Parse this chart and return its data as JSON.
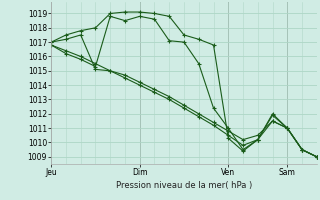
{
  "title": "Pression niveau de la mer( hPa )",
  "background_color": "#d0ece4",
  "grid_color": "#b0d8c8",
  "line_color": "#1a5c1a",
  "ylim": [
    1008.5,
    1019.8
  ],
  "yticks": [
    1009,
    1010,
    1011,
    1012,
    1013,
    1014,
    1015,
    1016,
    1017,
    1018,
    1019
  ],
  "day_labels": [
    "Jeu",
    "Dim",
    "Ven",
    "Sam"
  ],
  "day_positions": [
    0,
    48,
    96,
    128
  ],
  "xlim": [
    0,
    144
  ],
  "series1_x": [
    0,
    8,
    16,
    24,
    32,
    40,
    48,
    56,
    64,
    72,
    80,
    88,
    96,
    104,
    112,
    120,
    128,
    136,
    144
  ],
  "series1_y": [
    1017.0,
    1017.5,
    1017.8,
    1018.0,
    1019.0,
    1019.1,
    1019.1,
    1019.0,
    1018.8,
    1017.5,
    1017.2,
    1016.8,
    1010.3,
    1009.4,
    1010.2,
    1012.0,
    1011.0,
    1009.5,
    1009.0
  ],
  "series2_x": [
    0,
    8,
    16,
    24,
    32,
    40,
    48,
    56,
    64,
    72,
    80,
    88,
    96,
    104,
    112,
    120,
    128,
    136,
    144
  ],
  "series2_y": [
    1016.8,
    1016.2,
    1015.8,
    1015.3,
    1018.8,
    1018.5,
    1018.8,
    1018.6,
    1017.1,
    1017.0,
    1015.5,
    1012.4,
    1011.0,
    1009.5,
    1010.2,
    1011.9,
    1011.0,
    1009.5,
    1009.0
  ],
  "series3_x": [
    0,
    8,
    16,
    24,
    32,
    40,
    48,
    56,
    64,
    72,
    80,
    88,
    96,
    104,
    112,
    120,
    128,
    136,
    144
  ],
  "series3_y": [
    1017.0,
    1017.2,
    1017.5,
    1015.1,
    1015.0,
    1014.7,
    1014.2,
    1013.7,
    1013.2,
    1012.6,
    1012.0,
    1011.4,
    1010.8,
    1010.2,
    1010.5,
    1011.5,
    1011.0,
    1009.5,
    1009.0
  ],
  "series4_x": [
    0,
    8,
    16,
    24,
    32,
    40,
    48,
    56,
    64,
    72,
    80,
    88,
    96,
    104,
    112,
    120,
    128,
    136,
    144
  ],
  "series4_y": [
    1016.8,
    1016.4,
    1016.0,
    1015.5,
    1015.0,
    1014.5,
    1014.0,
    1013.5,
    1013.0,
    1012.4,
    1011.8,
    1011.2,
    1010.5,
    1009.8,
    1010.2,
    1011.5,
    1011.0,
    1009.5,
    1009.0
  ]
}
